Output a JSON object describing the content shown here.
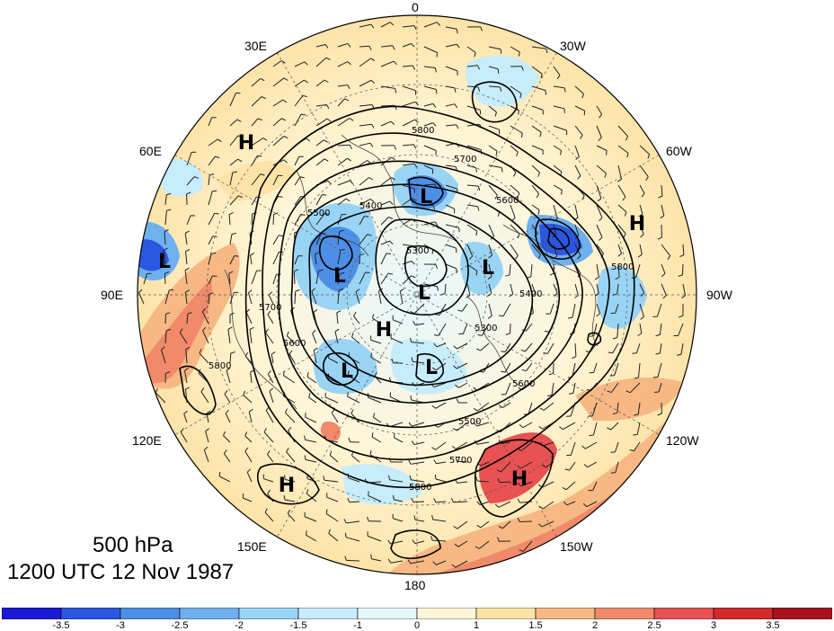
{
  "map": {
    "title_level": "500 hPa",
    "title_time": "1200 UTC 12 Nov 1987",
    "longitude_labels": {
      "top": "0",
      "upper_right": "30W",
      "right_upper": "60W",
      "right": "90W",
      "right_lower": "120W",
      "lower_right": "150W",
      "bottom": "180",
      "lower_left": "150E",
      "left_lower": "120E",
      "left": "90E",
      "left_upper": "60E",
      "upper_left": "30E"
    },
    "pressure_systems": [
      {
        "label": "H",
        "name": "high-europe"
      },
      {
        "label": "L",
        "name": "low-asia-west"
      },
      {
        "label": "L",
        "name": "low-norway-sea"
      },
      {
        "label": "L",
        "name": "low-siberia"
      },
      {
        "label": "L",
        "name": "low-canada-arctic"
      },
      {
        "label": "L",
        "name": "low-pole"
      },
      {
        "label": "H",
        "name": "high-siberia"
      },
      {
        "label": "L",
        "name": "low-east-siberia"
      },
      {
        "label": "L",
        "name": "low-alaska"
      },
      {
        "label": "H",
        "name": "high-atlantic-west"
      },
      {
        "label": "H",
        "name": "high-pacific-west"
      },
      {
        "label": "H",
        "name": "high-pacific-east"
      }
    ],
    "contour_labels": [
      "5800",
      "5700",
      "5600",
      "5500",
      "5400",
      "5300",
      "5700",
      "5800",
      "5600",
      "5500",
      "5700",
      "5800",
      "5600",
      "5400",
      "5300",
      "5800"
    ],
    "colorbar": {
      "ticks": [
        "-3.5",
        "-3",
        "-2.5",
        "-2",
        "-1.5",
        "-1",
        "0",
        "1",
        "1.5",
        "2",
        "2.5",
        "3",
        "3.5"
      ],
      "colors": [
        "#1a1ad6",
        "#2b57e0",
        "#4d8fe6",
        "#6fb0ee",
        "#99d4f5",
        "#c7ecfb",
        "#e6f7fd",
        "#fff6d8",
        "#fde3a8",
        "#f7b883",
        "#f08a6a",
        "#e85252",
        "#d12a2a",
        "#a8101e"
      ]
    }
  }
}
